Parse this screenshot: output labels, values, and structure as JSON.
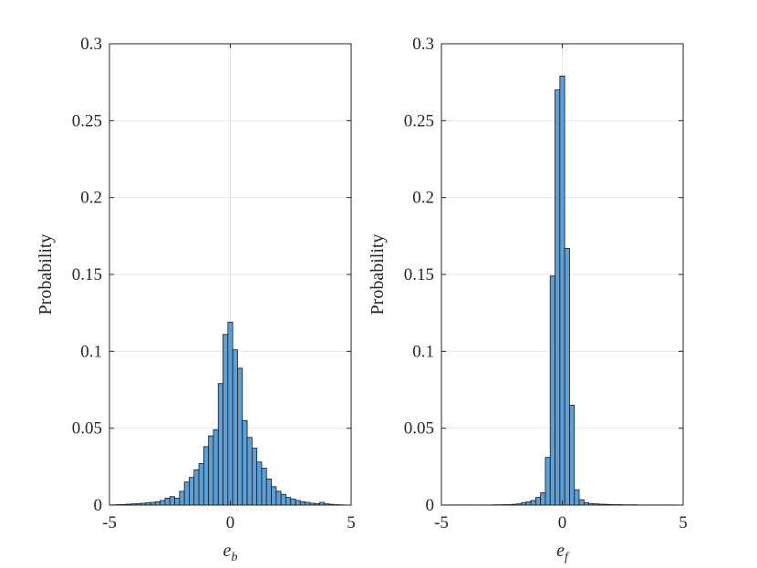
{
  "chart_data": [
    {
      "type": "bar",
      "xlabel_main": "e",
      "xlabel_sub": "b",
      "ylabel": "Probability",
      "xlim": [
        -5,
        5
      ],
      "ylim": [
        0,
        0.3
      ],
      "xticks": [
        "-5",
        "0",
        "5"
      ],
      "yticks": [
        "0",
        "0.05",
        "0.1",
        "0.15",
        "0.2",
        "0.25",
        "0.3"
      ],
      "grid": true,
      "bar_color": "#5B9FD4",
      "bin_width": 0.2,
      "bins": [
        [
          -4.8,
          0.0002
        ],
        [
          -4.6,
          0.0003
        ],
        [
          -4.4,
          0.0004
        ],
        [
          -4.2,
          0.0006
        ],
        [
          -4.0,
          0.0008
        ],
        [
          -3.8,
          0.001
        ],
        [
          -3.6,
          0.0012
        ],
        [
          -3.4,
          0.0015
        ],
        [
          -3.2,
          0.0018
        ],
        [
          -3.0,
          0.0022
        ],
        [
          -2.8,
          0.003
        ],
        [
          -2.6,
          0.0045
        ],
        [
          -2.4,
          0.0055
        ],
        [
          -2.2,
          0.0045
        ],
        [
          -2.0,
          0.009
        ],
        [
          -1.8,
          0.015
        ],
        [
          -1.6,
          0.018
        ],
        [
          -1.4,
          0.023
        ],
        [
          -1.2,
          0.027
        ],
        [
          -1.0,
          0.038
        ],
        [
          -0.8,
          0.045
        ],
        [
          -0.6,
          0.049
        ],
        [
          -0.4,
          0.079
        ],
        [
          -0.2,
          0.111
        ],
        [
          0.0,
          0.119
        ],
        [
          0.2,
          0.101
        ],
        [
          0.4,
          0.089
        ],
        [
          0.6,
          0.055
        ],
        [
          0.8,
          0.044
        ],
        [
          1.0,
          0.037
        ],
        [
          1.2,
          0.028
        ],
        [
          1.4,
          0.024
        ],
        [
          1.6,
          0.017
        ],
        [
          1.8,
          0.012
        ],
        [
          2.0,
          0.009
        ],
        [
          2.2,
          0.007
        ],
        [
          2.4,
          0.005
        ],
        [
          2.6,
          0.004
        ],
        [
          2.8,
          0.003
        ],
        [
          3.0,
          0.0022
        ],
        [
          3.2,
          0.0018
        ],
        [
          3.4,
          0.0012
        ],
        [
          3.6,
          0.001
        ],
        [
          3.8,
          0.0018
        ],
        [
          4.0,
          0.0008
        ],
        [
          4.2,
          0.0005
        ],
        [
          4.4,
          0.0003
        ],
        [
          4.6,
          0.0002
        ]
      ]
    },
    {
      "type": "bar",
      "xlabel_main": "e",
      "xlabel_sub": "f",
      "ylabel": "Probability",
      "xlim": [
        -5,
        5
      ],
      "ylim": [
        0,
        0.3
      ],
      "xticks": [
        "-5",
        "0",
        "5"
      ],
      "yticks": [
        "0",
        "0.05",
        "0.1",
        "0.15",
        "0.2",
        "0.25",
        "0.3"
      ],
      "grid": true,
      "bar_color": "#5B9FD4",
      "bin_width": 0.2,
      "bins": [
        [
          -4.8,
          0.0001
        ],
        [
          -4.6,
          0.0001
        ],
        [
          -4.4,
          0.0001
        ],
        [
          -4.2,
          0.0001
        ],
        [
          -4.0,
          0.0001
        ],
        [
          -3.8,
          0.0001
        ],
        [
          -3.6,
          0.0001
        ],
        [
          -3.4,
          0.0001
        ],
        [
          -3.2,
          0.0001
        ],
        [
          -3.0,
          0.0001
        ],
        [
          -2.8,
          0.0002
        ],
        [
          -2.6,
          0.0002
        ],
        [
          -2.4,
          0.0003
        ],
        [
          -2.2,
          0.0003
        ],
        [
          -2.0,
          0.0005
        ],
        [
          -1.8,
          0.0008
        ],
        [
          -1.6,
          0.0015
        ],
        [
          -1.4,
          0.0022
        ],
        [
          -1.2,
          0.003
        ],
        [
          -1.0,
          0.005
        ],
        [
          -0.8,
          0.008
        ],
        [
          -0.6,
          0.031
        ],
        [
          -0.4,
          0.149
        ],
        [
          -0.2,
          0.27
        ],
        [
          0.0,
          0.279
        ],
        [
          0.2,
          0.167
        ],
        [
          0.4,
          0.065
        ],
        [
          0.6,
          0.01
        ],
        [
          0.8,
          0.0035
        ],
        [
          1.0,
          0.0015
        ],
        [
          1.2,
          0.001
        ],
        [
          1.4,
          0.0008
        ],
        [
          1.6,
          0.0006
        ],
        [
          1.8,
          0.0005
        ],
        [
          2.0,
          0.0004
        ],
        [
          2.2,
          0.0003
        ],
        [
          2.4,
          0.0003
        ],
        [
          2.6,
          0.0002
        ],
        [
          2.8,
          0.0002
        ],
        [
          3.0,
          0.0002
        ],
        [
          3.2,
          0.0001
        ],
        [
          3.4,
          0.0001
        ],
        [
          3.6,
          0.0001
        ],
        [
          3.8,
          0.0001
        ],
        [
          4.0,
          0.0001
        ],
        [
          4.2,
          0.0001
        ],
        [
          4.4,
          0.0001
        ],
        [
          4.6,
          0.0001
        ]
      ]
    }
  ]
}
